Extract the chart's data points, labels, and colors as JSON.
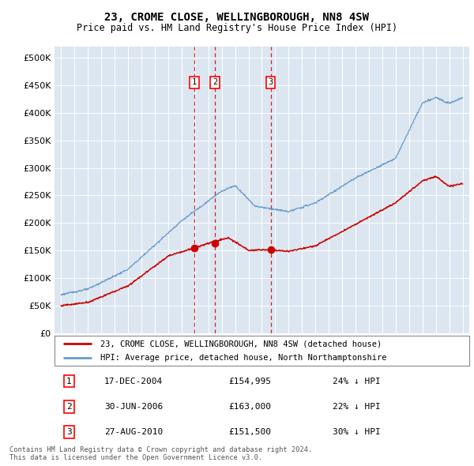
{
  "title": "23, CROME CLOSE, WELLINGBOROUGH, NN8 4SW",
  "subtitle": "Price paid vs. HM Land Registry's House Price Index (HPI)",
  "legend_label_red": "23, CROME CLOSE, WELLINGBOROUGH, NN8 4SW (detached house)",
  "legend_label_blue": "HPI: Average price, detached house, North Northamptonshire",
  "footer1": "Contains HM Land Registry data © Crown copyright and database right 2024.",
  "footer2": "This data is licensed under the Open Government Licence v3.0.",
  "sales": [
    {
      "label": "1",
      "date": "17-DEC-2004",
      "price": 154995,
      "pct": "24%",
      "x": 2004.96
    },
    {
      "label": "2",
      "date": "30-JUN-2006",
      "price": 163000,
      "pct": "22%",
      "x": 2006.5
    },
    {
      "label": "3",
      "date": "27-AUG-2010",
      "price": 151500,
      "pct": "30%",
      "x": 2010.66
    }
  ],
  "plot_bg_color": "#dce6f0",
  "red_color": "#cc0000",
  "blue_color": "#6699cc",
  "ylim": [
    0,
    520000
  ],
  "yticks": [
    0,
    50000,
    100000,
    150000,
    200000,
    250000,
    300000,
    350000,
    400000,
    450000,
    500000
  ],
  "xmin": 1994.5,
  "xmax": 2025.5
}
